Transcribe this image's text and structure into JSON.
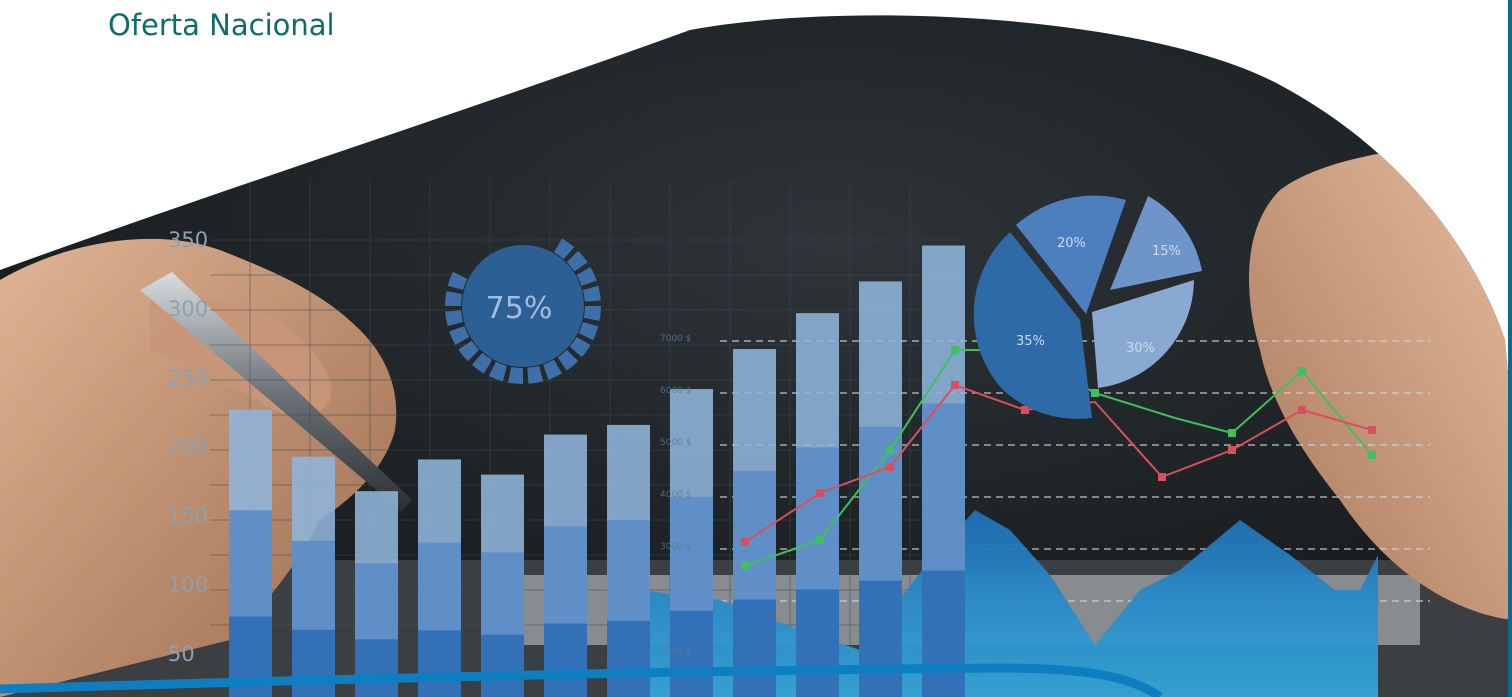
{
  "header": {
    "title": "Oferta Nacional"
  },
  "colors": {
    "title": "#0b6e6a",
    "accent_strip": "#0e6a8c",
    "bar_light": "#8fb5dc",
    "bar_mid": "#5c8cc6",
    "bar_dark": "#2f6fb6",
    "area_fill": "#2a8fd0",
    "bottom_band": "#0d7fc0",
    "line_green": "#3fbf5e",
    "line_red": "#d9505c",
    "pie_dark": "#2f6aa8",
    "pie_mid": "#4d7fbe",
    "pie_light": "#8aa9d2"
  },
  "icons": {
    "progress_ring": "donut-progress-icon",
    "pen": "pen-icon"
  },
  "hero": {
    "y_ticks": [
      "350",
      "300",
      "250",
      "200",
      "150",
      "100",
      "50"
    ],
    "ring_label": "75%",
    "ring_fraction": 0.75,
    "pie": [
      {
        "label": "20%",
        "value": 20
      },
      {
        "label": "15%",
        "value": 15
      },
      {
        "label": "30%",
        "value": 30
      },
      {
        "label": "35%",
        "value": 35
      }
    ],
    "line_axis_labels": [
      "7000 $",
      "6000 $",
      "5000 $",
      "4000 $",
      "3000 $",
      "1000 $"
    ],
    "bars": [
      227,
      193,
      168,
      191,
      180,
      209,
      216,
      242,
      271,
      297,
      320,
      346
    ]
  }
}
